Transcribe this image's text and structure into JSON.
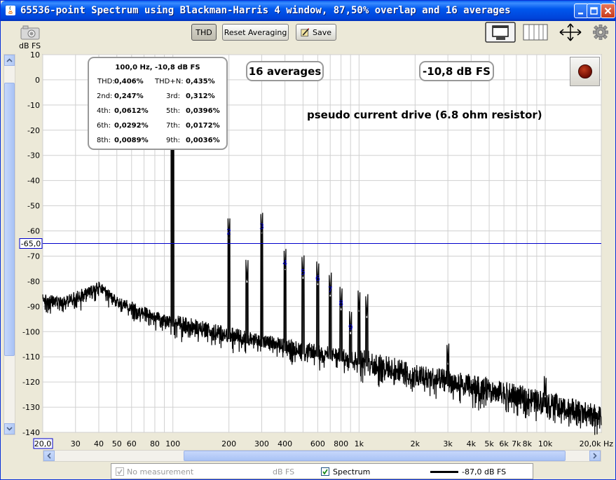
{
  "window": {
    "title": "65536-point Spectrum using Blackman-Harris 4 window, 87,50% overlap and 16 averages"
  },
  "toolbar": {
    "thd_label": "THD",
    "reset_label": "Reset Averaging",
    "save_label": "Save"
  },
  "y_unit": "dB FS",
  "harmonics_panel": {
    "header": "100,0 Hz, -10,8 dB FS",
    "rows": [
      {
        "l1": "THD:",
        "v1": "0,406%",
        "l2": "THD+N:",
        "v2": "0,435%"
      },
      {
        "l1": "2nd:",
        "v1": "0,247%",
        "l2": "3rd:",
        "v2": "0,312%"
      },
      {
        "l1": "4th:",
        "v1": "0,0612%",
        "l2": "5th:",
        "v2": "0,0396%"
      },
      {
        "l1": "6th:",
        "v1": "0,0292%",
        "l2": "7th:",
        "v2": "0,0172%"
      },
      {
        "l1": "8th:",
        "v1": "0,0089%",
        "l2": "9th:",
        "v2": "0,0036%"
      }
    ]
  },
  "averages_label": "16 averages",
  "level_label": "-10,8 dB FS",
  "annotation": "pseudo current drive (6.8 ohm resistor)",
  "marker": {
    "value": -65,
    "label": "-65,0"
  },
  "legend": {
    "no_measurement": "No measurement",
    "unit": "dB FS",
    "spectrum": "Spectrum",
    "spectrum_level": "-87,0 dB FS"
  },
  "colors": {
    "trace": "#000000",
    "marker_line": "#0000CC",
    "harmonic_label": "#0000CC",
    "grid": "#D0D0D0"
  },
  "chart_data": {
    "type": "line",
    "x_scale": "log",
    "xlim": [
      20,
      20000
    ],
    "ylim": [
      -140,
      10
    ],
    "x_unit": "Hz",
    "y_ticks": [
      10,
      0,
      -10,
      -20,
      -30,
      -40,
      -50,
      -60,
      -70,
      -80,
      -90,
      -100,
      -110,
      -120,
      -130,
      -140
    ],
    "x_ticks": [
      {
        "v": 20,
        "label": "20,0"
      },
      {
        "v": 30,
        "label": "30"
      },
      {
        "v": 40,
        "label": "40"
      },
      {
        "v": 50,
        "label": "50"
      },
      {
        "v": 60,
        "label": "60"
      },
      {
        "v": 80,
        "label": "80"
      },
      {
        "v": 100,
        "label": "100"
      },
      {
        "v": 200,
        "label": "200"
      },
      {
        "v": 300,
        "label": "300"
      },
      {
        "v": 400,
        "label": "400"
      },
      {
        "v": 600,
        "label": "600"
      },
      {
        "v": 800,
        "label": "800"
      },
      {
        "v": 1000,
        "label": "1k"
      },
      {
        "v": 2000,
        "label": "2k"
      },
      {
        "v": 3000,
        "label": "3k"
      },
      {
        "v": 4000,
        "label": "4k"
      },
      {
        "v": 5000,
        "label": "5k"
      },
      {
        "v": 6000,
        "label": "6k"
      },
      {
        "v": 7000,
        "label": "7k"
      },
      {
        "v": 8000,
        "label": "8k"
      },
      {
        "v": 10000,
        "label": "10k"
      },
      {
        "v": 20000,
        "label": "20,0k Hz"
      }
    ],
    "fundamental": {
      "f": 100,
      "db": -10.8
    },
    "harmonics": [
      {
        "n": 2,
        "f": 200,
        "db": -63
      },
      {
        "n": 3,
        "f": 300,
        "db": -61
      },
      {
        "n": 4,
        "f": 400,
        "db": -75.5
      },
      {
        "n": 5,
        "f": 500,
        "db": -79
      },
      {
        "n": 6,
        "f": 600,
        "db": -81.5
      },
      {
        "n": 7,
        "f": 700,
        "db": -86
      },
      {
        "n": 8,
        "f": 800,
        "db": -91.5
      },
      {
        "n": 9,
        "f": 900,
        "db": -101
      }
    ],
    "extra_peaks": [
      {
        "f": 250,
        "db": -80.5
      },
      {
        "f": 1000,
        "db": -92
      },
      {
        "f": 1100,
        "db": -94.5
      },
      {
        "f": 3000,
        "db": -113
      },
      {
        "f": 10000,
        "db": -126
      }
    ],
    "noise_floor": [
      {
        "f": 20,
        "db": -87
      },
      {
        "f": 25,
        "db": -88
      },
      {
        "f": 30,
        "db": -86
      },
      {
        "f": 35,
        "db": -84
      },
      {
        "f": 40,
        "db": -82
      },
      {
        "f": 45,
        "db": -85
      },
      {
        "f": 50,
        "db": -88
      },
      {
        "f": 60,
        "db": -90
      },
      {
        "f": 70,
        "db": -92
      },
      {
        "f": 80,
        "db": -94
      },
      {
        "f": 90,
        "db": -95
      },
      {
        "f": 100,
        "db": -96
      },
      {
        "f": 150,
        "db": -99
      },
      {
        "f": 200,
        "db": -101
      },
      {
        "f": 300,
        "db": -104
      },
      {
        "f": 500,
        "db": -107
      },
      {
        "f": 1000,
        "db": -111
      },
      {
        "f": 2000,
        "db": -117
      },
      {
        "f": 5000,
        "db": -123
      },
      {
        "f": 10000,
        "db": -128
      },
      {
        "f": 20000,
        "db": -134
      }
    ]
  }
}
